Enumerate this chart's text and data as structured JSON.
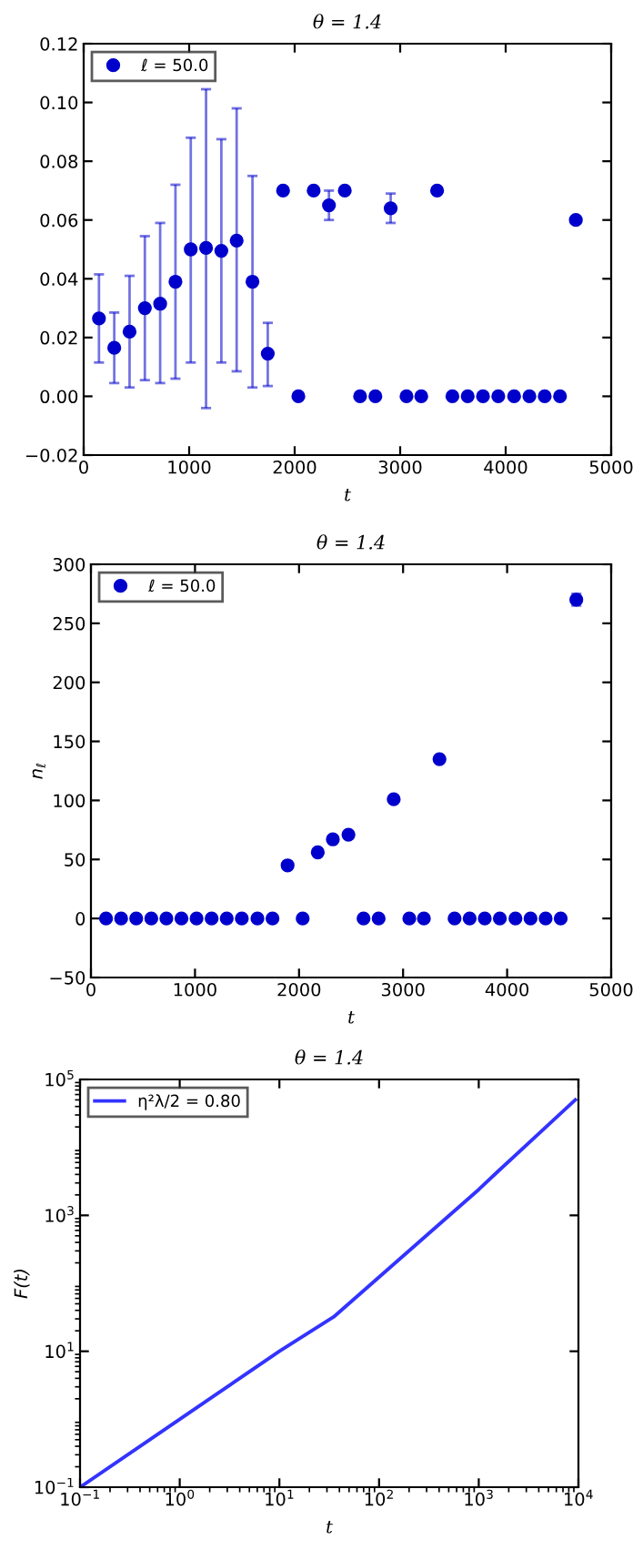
{
  "chart_data": [
    {
      "type": "scatter",
      "title": "θ = 1.4",
      "xlabel": "t",
      "xlim": [
        0,
        5000
      ],
      "xticks": [
        0,
        1000,
        2000,
        3000,
        4000,
        5000
      ],
      "ylim": [
        -0.02,
        0.12
      ],
      "yticks": [
        {
          "value": -0.02,
          "label": "−0.02"
        },
        {
          "value": 0,
          "label": "0.00"
        },
        {
          "value": 0.02,
          "label": "0.02"
        },
        {
          "value": 0.04,
          "label": "0.04"
        },
        {
          "value": 0.06,
          "label": "0.06"
        },
        {
          "value": 0.08,
          "label": "0.08"
        },
        {
          "value": 0.1,
          "label": "0.10"
        },
        {
          "value": 0.12,
          "label": "0.12"
        }
      ],
      "legend": "top left",
      "marker": "circle",
      "grid": false,
      "x": [
        145,
        290,
        435,
        580,
        725,
        870,
        1015,
        1160,
        1305,
        1450,
        1600,
        1745,
        1890,
        2035,
        2180,
        2325,
        2475,
        2620,
        2765,
        2910,
        3060,
        3200,
        3350,
        3495,
        3640,
        3785,
        3930,
        4080,
        4225,
        4370,
        4515,
        4665
      ],
      "series": [
        {
          "name": "ℓ = 50.0",
          "color": "#0000cc",
          "values": [
            0.0265,
            0.0165,
            0.022,
            0.03,
            0.0315,
            0.039,
            0.05,
            0.0505,
            0.0495,
            0.053,
            0.039,
            0.0145,
            0.07,
            0.0,
            0.07,
            0.065,
            0.07,
            0.0,
            0.0,
            0.064,
            0.0,
            0.0,
            0.07,
            0.0,
            0.0,
            0.0,
            0.0,
            0.0,
            0.0,
            0.0,
            0.0,
            0.06
          ],
          "errors": [
            [
              0.0115,
              0.0415
            ],
            [
              0.0045,
              0.0285
            ],
            [
              0.003,
              0.041
            ],
            [
              0.0055,
              0.0545
            ],
            [
              0.0045,
              0.059
            ],
            [
              0.006,
              0.072
            ],
            [
              0.0115,
              0.088
            ],
            [
              -0.004,
              0.1045
            ],
            [
              0.0115,
              0.0875
            ],
            [
              0.0085,
              0.098
            ],
            [
              0.003,
              0.075
            ],
            [
              0.0035,
              0.025
            ],
            null,
            null,
            null,
            [
              0.06,
              0.07
            ],
            null,
            null,
            null,
            [
              0.059,
              0.069
            ],
            null,
            null,
            null,
            null,
            null,
            null,
            null,
            null,
            null,
            null,
            null,
            null
          ]
        }
      ]
    },
    {
      "type": "scatter",
      "title": "θ = 1.4",
      "xlabel": "t",
      "ylabel": "n$_{ℓ}$",
      "xlim": [
        0,
        5000
      ],
      "xticks": [
        0,
        1000,
        2000,
        3000,
        4000,
        5000
      ],
      "ylim": [
        -50,
        300
      ],
      "yticks": [
        {
          "value": -50,
          "label": "−50"
        },
        0,
        50,
        100,
        150,
        200,
        250,
        300
      ],
      "legend": "top left",
      "marker": "circle",
      "grid": false,
      "x": [
        145,
        290,
        435,
        580,
        725,
        870,
        1015,
        1160,
        1305,
        1450,
        1600,
        1745,
        1890,
        2035,
        2180,
        2325,
        2475,
        2620,
        2765,
        2910,
        3060,
        3200,
        3350,
        3495,
        3640,
        3785,
        3930,
        4080,
        4225,
        4370,
        4515,
        4665
      ],
      "series": [
        {
          "name": "ℓ = 50.0",
          "color": "#0000cc",
          "values": [
            0,
            0,
            0,
            0,
            0,
            0,
            0,
            0,
            0,
            0,
            0,
            0,
            45,
            0,
            56,
            67,
            71,
            0,
            0,
            101,
            0,
            0,
            135,
            0,
            0,
            0,
            0,
            0,
            0,
            0,
            0,
            270
          ],
          "errors": [
            null,
            null,
            null,
            null,
            null,
            null,
            null,
            null,
            null,
            null,
            null,
            null,
            null,
            null,
            null,
            null,
            null,
            null,
            null,
            null,
            null,
            null,
            null,
            null,
            null,
            null,
            null,
            null,
            null,
            null,
            null,
            [
              265,
              275
            ]
          ]
        }
      ]
    },
    {
      "type": "line",
      "title": "θ = 1.4",
      "xlabel": "t",
      "ylabel": "F(t)",
      "log": "xy",
      "xlim": [
        0.1,
        10000
      ],
      "xticks": [
        {
          "value": 0.1,
          "label": "10$^{−1}$"
        },
        {
          "value": 1,
          "label": "10$^{0}$"
        },
        {
          "value": 10,
          "label": "10$^{1}$"
        },
        {
          "value": 100,
          "label": "10$^{2}$"
        },
        {
          "value": 1000,
          "label": "10$^{3}$"
        },
        {
          "value": 10000,
          "label": "10$^{4}$"
        }
      ],
      "ylim": [
        0.1,
        100000
      ],
      "yticks": [
        {
          "value": 0.1,
          "label": "10$^{−1}$"
        },
        {
          "value": 10,
          "label": "10$^{1}$"
        },
        {
          "value": 1000,
          "label": "10$^{3}$"
        },
        {
          "value": 100000,
          "label": "10$^{5}$"
        }
      ],
      "legend": "top left",
      "marker": "none",
      "line_style": "solid",
      "grid": false,
      "series": [
        {
          "name": "η²λ/2 = 0.80",
          "color": "#3333ff",
          "x": [
            0.1,
            1,
            10,
            35,
            1000,
            1550,
            9300
          ],
          "values": [
            0.1,
            1,
            10,
            32,
            2400,
            4400,
            50000
          ]
        }
      ]
    }
  ]
}
